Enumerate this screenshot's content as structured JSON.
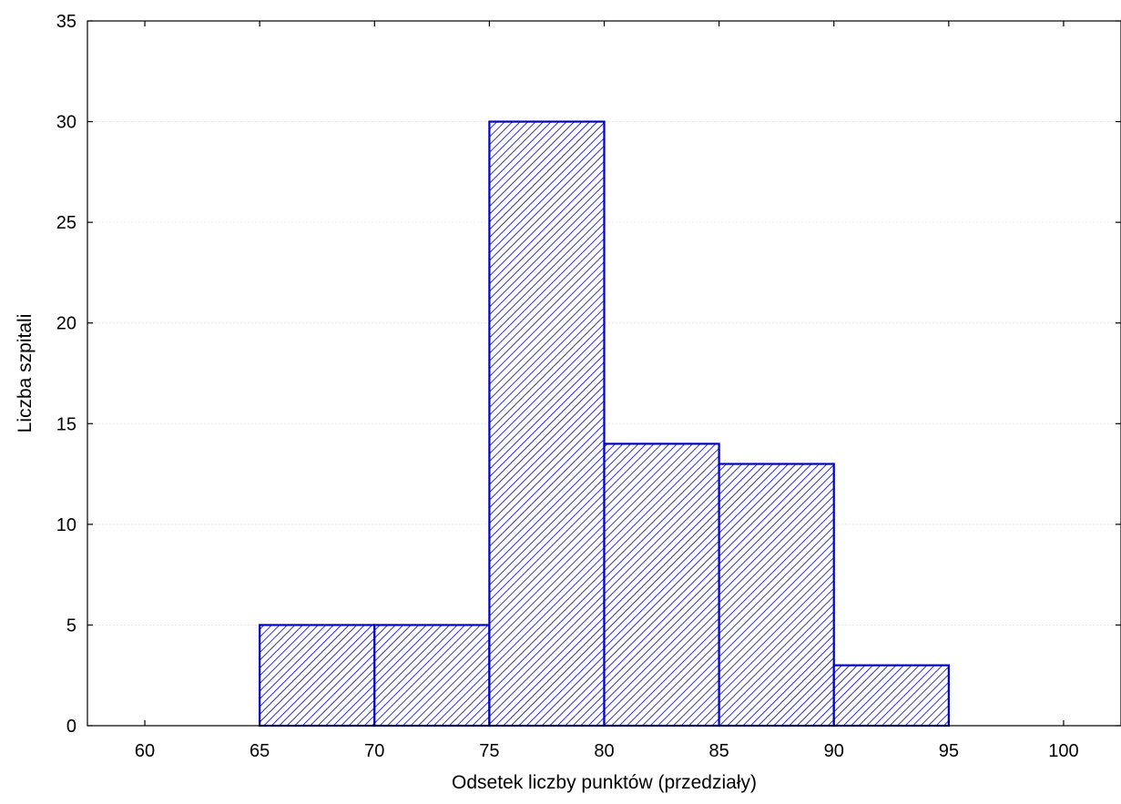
{
  "chart_data": {
    "type": "bar",
    "title": "",
    "xlabel": "Odsetek liczby punktów (przedziały)",
    "ylabel": "Liczba szpitali",
    "bins": [
      {
        "from": 65,
        "to": 70,
        "value": 5
      },
      {
        "from": 70,
        "to": 75,
        "value": 5
      },
      {
        "from": 75,
        "to": 80,
        "value": 30
      },
      {
        "from": 80,
        "to": 85,
        "value": 14
      },
      {
        "from": 85,
        "to": 90,
        "value": 13
      },
      {
        "from": 90,
        "to": 95,
        "value": 3
      }
    ],
    "xlim": [
      57.5,
      102.5
    ],
    "ylim": [
      0,
      35
    ],
    "xticks": [
      "60",
      "65",
      "70",
      "75",
      "80",
      "85",
      "90",
      "95",
      "100"
    ],
    "yticks": [
      "0",
      "5",
      "10",
      "15",
      "20",
      "25",
      "30",
      "35"
    ],
    "grid": true,
    "bar_color": "#0000c0",
    "fill_pattern": "diagonal-hatch"
  }
}
